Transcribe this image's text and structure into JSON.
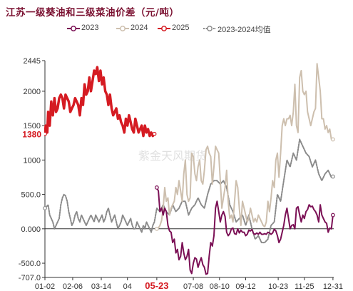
{
  "title": "江苏一级葵油和三级菜油价差（元/吨）",
  "watermark": "紫金天风期货",
  "colors": {
    "s2023": "#7b1055",
    "s2024": "#cdbfae",
    "s2025": "#d51b22",
    "avg": "#8a8a8a",
    "last_label": "#d51b22"
  },
  "chart_data": {
    "type": "line",
    "title": "江苏一级葵油和三级菜油价差（元/吨）",
    "xlabel": "",
    "ylabel": "",
    "ylim": [
      -707,
      2445
    ],
    "y_ticks": [
      "2445",
      "2000",
      "1500",
      "1000",
      "500.0",
      "0.000",
      "-500.0",
      "-707.0"
    ],
    "y_tick_values": [
      2445,
      2000,
      1500,
      1000,
      500,
      0,
      -500,
      -707
    ],
    "x_ticks": [
      "01-02",
      "02-06",
      "03-14",
      "04",
      "05-23",
      "07-08",
      "08-10",
      "09-12",
      "10-23",
      "11-25",
      "12-31"
    ],
    "x_tick_days": [
      1,
      36,
      72,
      105,
      142,
      188,
      221,
      254,
      295,
      328,
      364
    ],
    "highlight_x_tick": "05-23",
    "last_value_label": "1380",
    "legend": [
      "2023",
      "2024",
      "2025",
      "2023-2024均值"
    ],
    "legend_position": "top",
    "grid": false,
    "series": [
      {
        "name": "2023",
        "x": [
          142,
          144,
          146,
          148,
          150,
          152,
          154,
          156,
          158,
          160,
          162,
          164,
          166,
          168,
          170,
          172,
          174,
          176,
          178,
          180,
          182,
          184,
          186,
          188,
          190,
          192,
          194,
          196,
          198,
          200,
          202,
          204,
          206,
          208,
          210,
          212,
          214,
          216,
          218,
          220,
          222,
          224,
          226,
          228,
          230,
          232,
          234,
          236,
          238,
          240,
          242,
          244,
          246,
          248,
          250,
          252,
          254,
          256,
          258,
          260,
          262,
          264,
          266,
          268,
          270,
          272,
          274,
          276,
          278,
          280,
          282,
          284,
          286,
          288,
          290,
          292,
          294,
          296,
          298,
          300,
          302,
          304,
          306,
          308,
          310,
          312,
          314,
          316,
          318,
          320,
          322,
          324,
          326,
          328,
          330,
          332,
          334,
          336,
          338,
          340,
          342,
          344,
          346,
          348,
          350,
          352,
          354,
          356,
          358,
          360,
          362,
          364
        ],
        "y": [
          600,
          550,
          250,
          300,
          200,
          300,
          250,
          50,
          -30,
          -50,
          -200,
          -150,
          -350,
          -300,
          -450,
          -400,
          -200,
          -350,
          -450,
          -400,
          -300,
          -600,
          -650,
          -500,
          -420,
          -440,
          -560,
          -480,
          -420,
          -520,
          -560,
          -660,
          -650,
          -400,
          -200,
          -250,
          -100,
          300,
          400,
          250,
          100,
          200,
          250,
          180,
          -50,
          -100,
          -70,
          0,
          10,
          -70,
          -80,
          0,
          -60,
          -20,
          -50,
          -50,
          -100,
          -80,
          -20,
          -30,
          -10,
          -70,
          -80,
          -60,
          -80,
          -50,
          -80,
          -80,
          -70,
          -80,
          -50,
          -60,
          -80,
          -60,
          -5,
          -30,
          -100,
          -200,
          -150,
          -50,
          50,
          200,
          300,
          150,
          0,
          50,
          60,
          0,
          300,
          320,
          200,
          100,
          200,
          150,
          250,
          280,
          350,
          320,
          330,
          280,
          250,
          200,
          100,
          350,
          200,
          150,
          100,
          80,
          -50,
          10,
          0,
          200
        ]
      },
      {
        "name": "2024",
        "x": [
          142,
          144,
          146,
          148,
          150,
          152,
          154,
          156,
          158,
          160,
          162,
          164,
          166,
          168,
          170,
          172,
          174,
          176,
          178,
          180,
          182,
          184,
          186,
          188,
          190,
          192,
          194,
          196,
          198,
          200,
          202,
          204,
          206,
          208,
          210,
          212,
          214,
          216,
          218,
          220,
          222,
          224,
          226,
          228,
          230,
          232,
          234,
          236,
          238,
          240,
          242,
          244,
          246,
          248,
          250,
          252,
          254,
          256,
          258,
          260,
          262,
          264,
          266,
          268,
          270,
          272,
          274,
          276,
          278,
          280,
          282,
          284,
          286,
          288,
          290,
          292,
          294,
          296,
          298,
          300,
          302,
          304,
          306,
          308,
          310,
          312,
          314,
          316,
          318,
          320,
          322,
          324,
          326,
          328,
          330,
          332,
          334,
          336,
          338,
          340,
          342,
          344,
          346,
          348,
          350,
          352,
          354,
          356,
          358,
          360,
          362,
          364
        ],
        "y": [
          0,
          10,
          50,
          120,
          300,
          600,
          400,
          450,
          200,
          300,
          350,
          400,
          600,
          500,
          700,
          550,
          400,
          800,
          1000,
          500,
          400,
          450,
          1100,
          1050,
          800,
          700,
          900,
          1000,
          700,
          650,
          850,
          1150,
          1200,
          1100,
          1050,
          650,
          900,
          1200,
          1150,
          1100,
          700,
          300,
          450,
          600,
          850,
          400,
          150,
          200,
          100,
          400,
          700,
          600,
          300,
          50,
          400,
          300,
          200,
          100,
          150,
          300,
          200,
          100,
          150,
          100,
          200,
          150,
          100,
          50,
          30,
          100,
          400,
          250,
          450,
          700,
          600,
          1000,
          1100,
          750,
          1100,
          1500,
          1600,
          1500,
          1600,
          1600,
          1650,
          1500,
          1700,
          2100,
          1500,
          1400,
          2200,
          2300,
          2000,
          1950,
          2000,
          1700,
          1600,
          1500,
          1600,
          1700,
          1750,
          2400,
          2200,
          2000,
          1600,
          1600,
          1450,
          1500,
          1400,
          1450,
          1300,
          1300
        ]
      },
      {
        "name": "2025",
        "x": [
          1,
          2,
          4,
          5,
          7,
          9,
          11,
          13,
          15,
          17,
          19,
          21,
          23,
          25,
          27,
          29,
          31,
          33,
          35,
          37,
          39,
          41,
          43,
          45,
          47,
          49,
          51,
          53,
          55,
          57,
          59,
          61,
          63,
          65,
          67,
          69,
          71,
          73,
          75,
          77,
          79,
          81,
          83,
          85,
          87,
          89,
          91,
          93,
          95,
          97,
          99,
          101,
          103,
          105,
          107,
          109,
          111,
          113,
          115,
          117,
          119,
          121,
          123,
          125,
          127,
          129,
          131,
          133,
          135,
          137,
          139
        ],
        "y": [
          1380,
          1500,
          1400,
          1700,
          1500,
          1850,
          1650,
          1900,
          1700,
          1750,
          1900,
          1950,
          1900,
          1750,
          1950,
          1900,
          1850,
          1700,
          1750,
          1800,
          1900,
          1850,
          1800,
          1650,
          1900,
          1800,
          2100,
          1950,
          2000,
          2200,
          2000,
          2150,
          2300,
          2250,
          2350,
          2150,
          2300,
          2100,
          2200,
          2000,
          1950,
          1800,
          1950,
          1750,
          1650,
          1700,
          1750,
          1600,
          1650,
          1550,
          1500,
          1400,
          1600,
          1500,
          1650,
          1550,
          1450,
          1400,
          1600,
          1500,
          1400,
          1450,
          1500,
          1350,
          1500,
          1400,
          1450,
          1350,
          1400,
          1350,
          1380
        ]
      },
      {
        "name": "2023-2024均值",
        "x": [
          1,
          3,
          5,
          7,
          9,
          11,
          13,
          15,
          17,
          19,
          21,
          23,
          25,
          27,
          29,
          31,
          33,
          35,
          37,
          39,
          41,
          43,
          45,
          47,
          49,
          51,
          53,
          55,
          57,
          59,
          61,
          63,
          65,
          67,
          69,
          71,
          73,
          75,
          77,
          79,
          81,
          83,
          85,
          87,
          89,
          91,
          93,
          95,
          97,
          99,
          101,
          103,
          105,
          107,
          109,
          111,
          113,
          115,
          117,
          119,
          121,
          123,
          125,
          127,
          129,
          131,
          133,
          135,
          137,
          139,
          142,
          146,
          150,
          154,
          158,
          162,
          166,
          170,
          174,
          178,
          182,
          186,
          190,
          194,
          198,
          202,
          206,
          210,
          214,
          218,
          222,
          226,
          230,
          234,
          238,
          242,
          246,
          250,
          254,
          258,
          262,
          266,
          270,
          274,
          278,
          282,
          286,
          290,
          294,
          298,
          302,
          306,
          310,
          314,
          318,
          322,
          326,
          330,
          334,
          338,
          342,
          346,
          350,
          354,
          358,
          362,
          364
        ],
        "y": [
          300,
          320,
          350,
          200,
          150,
          100,
          0,
          50,
          100,
          150,
          350,
          450,
          500,
          480,
          400,
          250,
          150,
          50,
          100,
          200,
          250,
          150,
          100,
          200,
          150,
          100,
          50,
          100,
          150,
          200,
          150,
          100,
          200,
          150,
          100,
          150,
          200,
          100,
          150,
          250,
          300,
          200,
          100,
          150,
          200,
          100,
          0,
          50,
          100,
          200,
          150,
          100,
          50,
          100,
          150,
          50,
          0,
          0,
          100,
          50,
          0,
          -50,
          50,
          0,
          100,
          50,
          0,
          -50,
          50,
          100,
          300,
          250,
          350,
          250,
          200,
          350,
          250,
          300,
          400,
          400,
          200,
          300,
          350,
          450,
          350,
          300,
          500,
          650,
          700,
          700,
          650,
          700,
          600,
          350,
          250,
          100,
          150,
          200,
          50,
          200,
          0,
          -150,
          -100,
          -200,
          -200,
          -150,
          50,
          100,
          500,
          400,
          700,
          1000,
          900,
          1100,
          1000,
          1300,
          1200,
          1100,
          1050,
          900,
          1000,
          800,
          700,
          800,
          850,
          750,
          760
        ]
      }
    ]
  }
}
